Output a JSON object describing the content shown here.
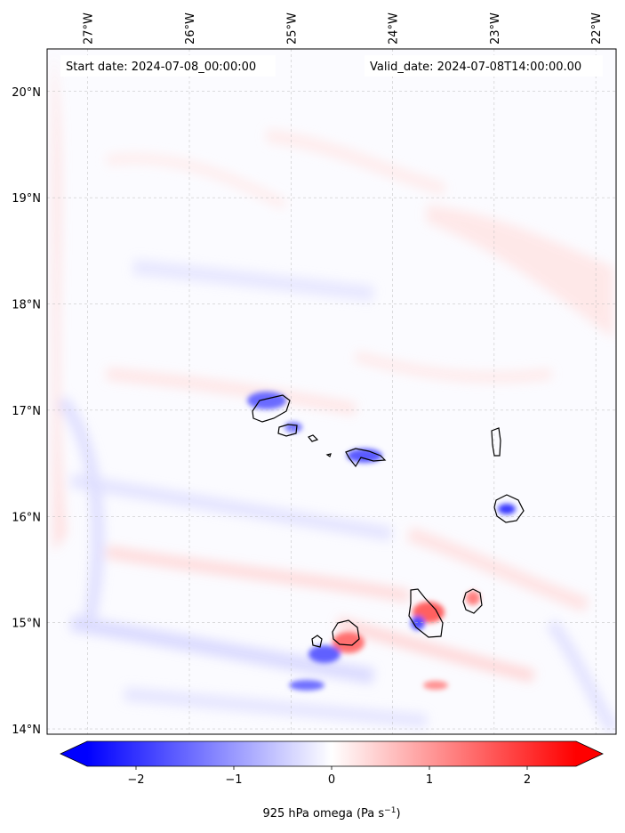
{
  "map": {
    "start_date_text": "Start date: 2024-07-08_00:00:00",
    "valid_date_text": "Valid_date: 2024-07-08T14:00:00.00",
    "lon_ticks": [
      {
        "value": -27,
        "label": "27°W"
      },
      {
        "value": -26,
        "label": "26°W"
      },
      {
        "value": -25,
        "label": "25°W"
      },
      {
        "value": -24,
        "label": "24°W"
      },
      {
        "value": -23,
        "label": "23°W"
      },
      {
        "value": -22,
        "label": "22°W"
      }
    ],
    "lat_ticks": [
      {
        "value": 14,
        "label": "14°N"
      },
      {
        "value": 15,
        "label": "15°N"
      },
      {
        "value": 16,
        "label": "16°N"
      },
      {
        "value": 17,
        "label": "17°N"
      },
      {
        "value": 18,
        "label": "18°N"
      },
      {
        "value": 19,
        "label": "19°N"
      },
      {
        "value": 20,
        "label": "20°N"
      }
    ],
    "extent": {
      "lon_min": -27.4,
      "lon_max": -21.8,
      "lat_min": 13.95,
      "lat_max": 20.4
    },
    "gridlines": true
  },
  "colorbar": {
    "label_main": "925 hPa omega (Pa s",
    "label_sup": "−1",
    "label_close": ")",
    "range": [
      -2.5,
      2.5
    ],
    "extend": "both",
    "colormap": "bwr",
    "ticks": [
      {
        "value": -2,
        "label": "−2"
      },
      {
        "value": -1,
        "label": "−1"
      },
      {
        "value": 0,
        "label": "0"
      },
      {
        "value": 1,
        "label": "1"
      },
      {
        "value": 2,
        "label": "2"
      }
    ]
  },
  "colors": {
    "negative": "#0000ff",
    "neutral": "#ffffff",
    "positive": "#ff0000"
  }
}
